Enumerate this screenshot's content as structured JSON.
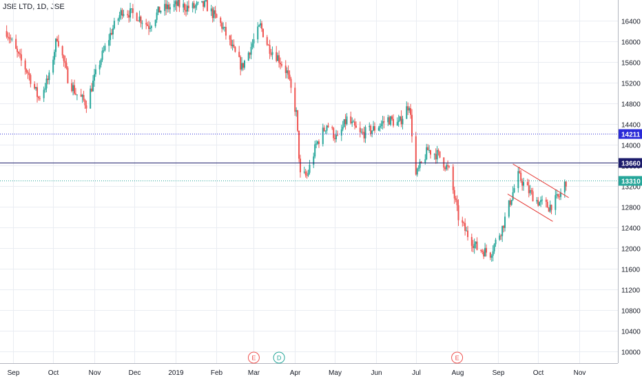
{
  "symbol": "JSE LTD, 1D, JSE",
  "colors": {
    "up": "#26a69a",
    "down": "#ef5350",
    "grid": "#e9ecf2",
    "axis_text": "#131722",
    "level_high": "#2a2ad8",
    "level_mid": "#1b1b6b",
    "level_low": "#26a69a",
    "trendline": "#e53935",
    "event_e": "#ef5350",
    "event_d": "#26a69a"
  },
  "chart_data": {
    "type": "candlestick",
    "y_ticks": [
      16400,
      16000,
      15600,
      15200,
      14800,
      14400,
      14000,
      13600,
      13200,
      12800,
      12400,
      12000,
      11600,
      11200,
      10800,
      10400,
      10000
    ],
    "ylim": [
      9780,
      16800
    ],
    "x_ticks": [
      {
        "label": "Sep",
        "date": "2018-09-01"
      },
      {
        "label": "Oct",
        "date": "2018-10-01"
      },
      {
        "label": "Nov",
        "date": "2018-11-01"
      },
      {
        "label": "Dec",
        "date": "2018-12-01"
      },
      {
        "label": "2019",
        "date": "2019-01-01"
      },
      {
        "label": "Feb",
        "date": "2019-02-01"
      },
      {
        "label": "Mar",
        "date": "2019-03-01"
      },
      {
        "label": "Apr",
        "date": "2019-04-01"
      },
      {
        "label": "May",
        "date": "2019-05-01"
      },
      {
        "label": "Jun",
        "date": "2019-06-01"
      },
      {
        "label": "Jul",
        "date": "2019-07-01"
      },
      {
        "label": "Aug",
        "date": "2019-08-01"
      },
      {
        "label": "Sep",
        "date": "2019-09-01"
      },
      {
        "label": "Oct",
        "date": "2019-10-01"
      },
      {
        "label": "Nov",
        "date": "2019-11-01"
      }
    ],
    "close_path": [
      [
        "2018-08-27",
        16200
      ],
      [
        "2018-09-05",
        15700
      ],
      [
        "2018-09-12",
        15400
      ],
      [
        "2018-09-20",
        14900
      ],
      [
        "2018-09-28",
        15300
      ],
      [
        "2018-10-04",
        16100
      ],
      [
        "2018-10-12",
        15300
      ],
      [
        "2018-10-18",
        15000
      ],
      [
        "2018-10-26",
        14800
      ],
      [
        "2018-11-05",
        15600
      ],
      [
        "2018-11-14",
        16200
      ],
      [
        "2018-11-22",
        16600
      ],
      [
        "2018-12-03",
        16500
      ],
      [
        "2018-12-12",
        16300
      ],
      [
        "2018-12-20",
        16600
      ],
      [
        "2019-01-02",
        16700
      ],
      [
        "2019-01-12",
        16650
      ],
      [
        "2019-01-24",
        16700
      ],
      [
        "2019-02-05",
        16300
      ],
      [
        "2019-02-14",
        15800
      ],
      [
        "2019-02-20",
        15500
      ],
      [
        "2019-02-27",
        15900
      ],
      [
        "2019-03-06",
        16300
      ],
      [
        "2019-03-12",
        15900
      ],
      [
        "2019-03-19",
        15700
      ],
      [
        "2019-03-26",
        15400
      ],
      [
        "2019-04-02",
        14600
      ],
      [
        "2019-04-05",
        13400
      ],
      [
        "2019-04-10",
        13400
      ],
      [
        "2019-04-17",
        14000
      ],
      [
        "2019-04-25",
        14400
      ],
      [
        "2019-05-03",
        14100
      ],
      [
        "2019-05-10",
        14500
      ],
      [
        "2019-05-20",
        14200
      ],
      [
        "2019-05-30",
        14300
      ],
      [
        "2019-06-10",
        14500
      ],
      [
        "2019-06-18",
        14400
      ],
      [
        "2019-06-26",
        14800
      ],
      [
        "2019-07-01",
        13400
      ],
      [
        "2019-07-10",
        13900
      ],
      [
        "2019-07-18",
        13800
      ],
      [
        "2019-07-26",
        13500
      ],
      [
        "2019-08-02",
        12600
      ],
      [
        "2019-08-08",
        12300
      ],
      [
        "2019-08-16",
        12000
      ],
      [
        "2019-08-26",
        11900
      ],
      [
        "2019-09-04",
        12400
      ],
      [
        "2019-09-11",
        13000
      ],
      [
        "2019-09-16",
        13400
      ],
      [
        "2019-09-24",
        13100
      ],
      [
        "2019-10-01",
        12900
      ],
      [
        "2019-10-09",
        12800
      ],
      [
        "2019-10-17",
        13000
      ],
      [
        "2019-10-22",
        13300
      ]
    ],
    "levels": [
      {
        "value": 14211,
        "label": "14211",
        "style": "dotted",
        "color_key": "level_high"
      },
      {
        "value": 13660,
        "label": "13660",
        "style": "solid",
        "color_key": "level_mid"
      },
      {
        "value": 13310,
        "label": "13310",
        "style": "dotted",
        "color_key": "level_low"
      }
    ],
    "trendlines": [
      {
        "from": [
          "2019-09-12",
          13630
        ],
        "to": [
          "2019-10-24",
          12980
        ]
      },
      {
        "from": [
          "2019-09-08",
          13050
        ],
        "to": [
          "2019-10-12",
          12520
        ]
      }
    ],
    "events": [
      {
        "label": "E",
        "date": "2019-03-01",
        "color_key": "event_e"
      },
      {
        "label": "D",
        "date": "2019-03-20",
        "color_key": "event_d"
      },
      {
        "label": "E",
        "date": "2019-08-01",
        "color_key": "event_e"
      }
    ]
  }
}
